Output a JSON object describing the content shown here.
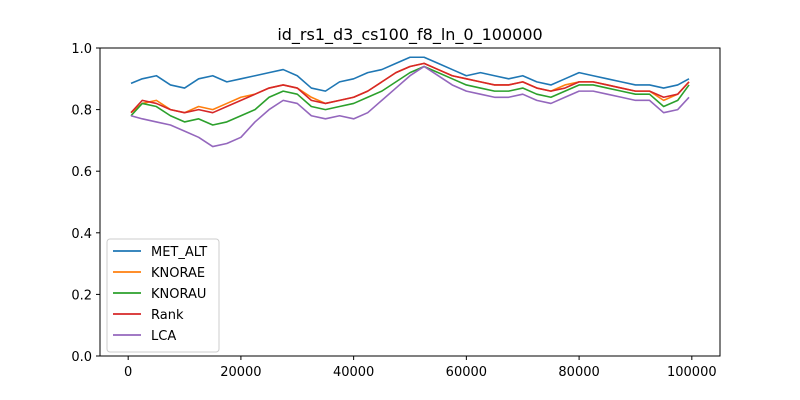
{
  "chart_data": {
    "type": "line",
    "title": "id_rs1_d3_cs100_f8_ln_0_100000",
    "xlabel": "",
    "ylabel": "",
    "xlim": [
      -5000,
      105000
    ],
    "ylim": [
      0.0,
      1.0
    ],
    "xticks": [
      0,
      20000,
      40000,
      60000,
      80000,
      100000
    ],
    "xtick_labels": [
      "0",
      "20000",
      "40000",
      "60000",
      "80000",
      "100000"
    ],
    "yticks": [
      0.0,
      0.2,
      0.4,
      0.6,
      0.8,
      1.0
    ],
    "ytick_labels": [
      "0.0",
      "0.2",
      "0.4",
      "0.6",
      "0.8",
      "1.0"
    ],
    "grid": false,
    "legend_position": "lower-left",
    "x_step": 2500,
    "series": [
      {
        "name": "MET_ALT",
        "color": "#1f77b4",
        "x": [
          500,
          2500,
          5000,
          7500,
          10000,
          12500,
          15000,
          17500,
          20000,
          22500,
          25000,
          27500,
          30000,
          32500,
          35000,
          37500,
          40000,
          42500,
          45000,
          47500,
          50000,
          52500,
          55000,
          57500,
          60000,
          62500,
          65000,
          67500,
          70000,
          72500,
          75000,
          77500,
          80000,
          82500,
          85000,
          87500,
          90000,
          92500,
          95000,
          97500,
          99500
        ],
        "values": [
          0.885,
          0.9,
          0.91,
          0.88,
          0.87,
          0.9,
          0.91,
          0.89,
          0.9,
          0.91,
          0.92,
          0.93,
          0.91,
          0.87,
          0.86,
          0.89,
          0.9,
          0.92,
          0.93,
          0.95,
          0.97,
          0.97,
          0.95,
          0.93,
          0.91,
          0.92,
          0.91,
          0.9,
          0.91,
          0.89,
          0.88,
          0.9,
          0.92,
          0.91,
          0.9,
          0.89,
          0.88,
          0.88,
          0.87,
          0.88,
          0.9
        ]
      },
      {
        "name": "KNORAE",
        "color": "#ff7f0e",
        "x": [
          500,
          2500,
          5000,
          7500,
          10000,
          12500,
          15000,
          17500,
          20000,
          22500,
          25000,
          27500,
          30000,
          32500,
          35000,
          37500,
          40000,
          42500,
          45000,
          47500,
          50000,
          52500,
          55000,
          57500,
          60000,
          62500,
          65000,
          67500,
          70000,
          72500,
          75000,
          77500,
          80000,
          82500,
          85000,
          87500,
          90000,
          92500,
          95000,
          97500,
          99500
        ],
        "values": [
          0.79,
          0.82,
          0.83,
          0.8,
          0.79,
          0.81,
          0.8,
          0.82,
          0.84,
          0.85,
          0.87,
          0.88,
          0.87,
          0.84,
          0.82,
          0.83,
          0.84,
          0.86,
          0.89,
          0.92,
          0.94,
          0.95,
          0.93,
          0.91,
          0.9,
          0.89,
          0.88,
          0.88,
          0.89,
          0.87,
          0.86,
          0.88,
          0.89,
          0.89,
          0.88,
          0.87,
          0.86,
          0.86,
          0.83,
          0.85,
          0.89
        ]
      },
      {
        "name": "KNORAU",
        "color": "#2ca02c",
        "x": [
          500,
          2500,
          5000,
          7500,
          10000,
          12500,
          15000,
          17500,
          20000,
          22500,
          25000,
          27500,
          30000,
          32500,
          35000,
          37500,
          40000,
          42500,
          45000,
          47500,
          50000,
          52500,
          55000,
          57500,
          60000,
          62500,
          65000,
          67500,
          70000,
          72500,
          75000,
          77500,
          80000,
          82500,
          85000,
          87500,
          90000,
          92500,
          95000,
          97500,
          99500
        ],
        "values": [
          0.78,
          0.82,
          0.81,
          0.78,
          0.76,
          0.77,
          0.75,
          0.76,
          0.78,
          0.8,
          0.84,
          0.86,
          0.85,
          0.81,
          0.8,
          0.81,
          0.82,
          0.84,
          0.86,
          0.89,
          0.92,
          0.94,
          0.92,
          0.9,
          0.88,
          0.87,
          0.86,
          0.86,
          0.87,
          0.85,
          0.84,
          0.86,
          0.88,
          0.88,
          0.87,
          0.86,
          0.85,
          0.85,
          0.81,
          0.83,
          0.88
        ]
      },
      {
        "name": "Rank",
        "color": "#d62728",
        "x": [
          500,
          2500,
          5000,
          7500,
          10000,
          12500,
          15000,
          17500,
          20000,
          22500,
          25000,
          27500,
          30000,
          32500,
          35000,
          37500,
          40000,
          42500,
          45000,
          47500,
          50000,
          52500,
          55000,
          57500,
          60000,
          62500,
          65000,
          67500,
          70000,
          72500,
          75000,
          77500,
          80000,
          82500,
          85000,
          87500,
          90000,
          92500,
          95000,
          97500,
          99500
        ],
        "values": [
          0.79,
          0.83,
          0.82,
          0.8,
          0.79,
          0.8,
          0.79,
          0.81,
          0.83,
          0.85,
          0.87,
          0.88,
          0.87,
          0.83,
          0.82,
          0.83,
          0.84,
          0.86,
          0.89,
          0.92,
          0.94,
          0.95,
          0.93,
          0.91,
          0.9,
          0.89,
          0.88,
          0.88,
          0.89,
          0.87,
          0.86,
          0.87,
          0.89,
          0.89,
          0.88,
          0.87,
          0.86,
          0.86,
          0.84,
          0.85,
          0.89
        ]
      },
      {
        "name": "LCA",
        "color": "#9467bd",
        "x": [
          500,
          2500,
          5000,
          7500,
          10000,
          12500,
          15000,
          17500,
          20000,
          22500,
          25000,
          27500,
          30000,
          32500,
          35000,
          37500,
          40000,
          42500,
          45000,
          47500,
          50000,
          52500,
          55000,
          57500,
          60000,
          62500,
          65000,
          67500,
          70000,
          72500,
          75000,
          77500,
          80000,
          82500,
          85000,
          87500,
          90000,
          92500,
          95000,
          97500,
          99500
        ],
        "values": [
          0.78,
          0.77,
          0.76,
          0.75,
          0.73,
          0.71,
          0.68,
          0.69,
          0.71,
          0.76,
          0.8,
          0.83,
          0.82,
          0.78,
          0.77,
          0.78,
          0.77,
          0.79,
          0.83,
          0.87,
          0.91,
          0.94,
          0.91,
          0.88,
          0.86,
          0.85,
          0.84,
          0.84,
          0.85,
          0.83,
          0.82,
          0.84,
          0.86,
          0.86,
          0.85,
          0.84,
          0.83,
          0.83,
          0.79,
          0.8,
          0.84
        ]
      }
    ]
  }
}
